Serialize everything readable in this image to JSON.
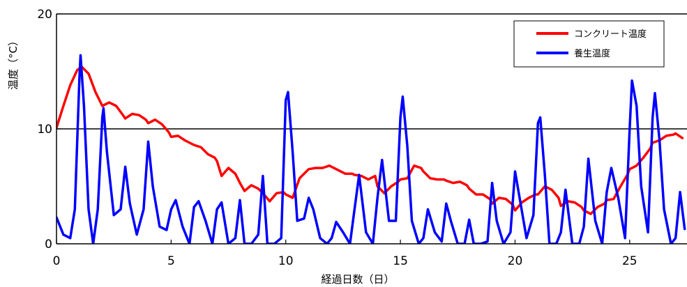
{
  "chart_data": {
    "type": "line",
    "title": "",
    "xlabel": "経過日数（日）",
    "ylabel": "温度（°C）",
    "xlim": [
      0,
      27.5
    ],
    "ylim": [
      0,
      20
    ],
    "xticks": [
      0,
      5,
      10,
      15,
      20,
      25
    ],
    "yticks": [
      0,
      10,
      20
    ],
    "grid": "horizontal line at 10",
    "legend_position": "top-right",
    "series": [
      {
        "name": "コンクリート温度",
        "color": "#ff0000",
        "x": [
          0,
          0.3,
          0.6,
          0.9,
          1.1,
          1.4,
          1.7,
          2.0,
          2.3,
          2.6,
          2.9,
          3.0,
          3.3,
          3.6,
          3.9,
          4.0,
          4.3,
          4.6,
          4.9,
          5.0,
          5.3,
          5.6,
          5.9,
          6.0,
          6.3,
          6.6,
          6.9,
          7.0,
          7.2,
          7.5,
          7.8,
          8.0,
          8.2,
          8.5,
          8.8,
          9.0,
          9.3,
          9.6,
          9.9,
          10.0,
          10.3,
          10.6,
          10.9,
          11.0,
          11.3,
          11.6,
          11.9,
          12.0,
          12.3,
          12.6,
          12.9,
          13.0,
          13.3,
          13.6,
          13.9,
          14.0,
          14.3,
          14.6,
          14.9,
          15.0,
          15.3,
          15.6,
          15.9,
          16.0,
          16.3,
          16.6,
          16.9,
          17.0,
          17.3,
          17.6,
          17.9,
          18.0,
          18.3,
          18.6,
          18.9,
          19.0,
          19.3,
          19.6,
          19.9,
          20.0,
          20.3,
          20.6,
          20.9,
          21.0,
          21.3,
          21.6,
          21.9,
          22.0,
          22.3,
          22.6,
          22.9,
          23.0,
          23.3,
          23.6,
          23.9,
          24.0,
          24.3,
          24.6,
          24.9,
          25.0,
          25.3,
          25.6,
          25.9,
          26.0,
          26.3,
          26.6,
          26.9,
          27.0,
          27.3
        ],
        "y": [
          10.1,
          12.0,
          13.8,
          15.1,
          15.4,
          14.8,
          13.2,
          12.0,
          12.3,
          12.0,
          11.2,
          10.9,
          11.3,
          11.2,
          10.8,
          10.5,
          10.8,
          10.4,
          9.7,
          9.3,
          9.4,
          9.0,
          8.7,
          8.6,
          8.4,
          7.8,
          7.5,
          7.2,
          5.9,
          6.6,
          6.1,
          5.3,
          4.6,
          5.1,
          4.8,
          4.4,
          3.7,
          4.4,
          4.5,
          4.3,
          4.0,
          5.7,
          6.3,
          6.5,
          6.6,
          6.6,
          6.8,
          6.7,
          6.4,
          6.1,
          6.1,
          6.0,
          5.9,
          5.6,
          5.9,
          5.0,
          4.4,
          5.0,
          5.4,
          5.6,
          5.7,
          6.8,
          6.6,
          6.3,
          5.7,
          5.6,
          5.6,
          5.5,
          5.3,
          5.4,
          5.1,
          4.8,
          4.3,
          4.3,
          3.9,
          3.5,
          4.0,
          3.9,
          3.4,
          2.9,
          3.6,
          4.0,
          4.3,
          4.3,
          5.0,
          4.7,
          4.0,
          3.3,
          3.7,
          3.6,
          3.2,
          2.9,
          2.6,
          3.2,
          3.5,
          3.8,
          3.9,
          5.0,
          6.0,
          6.5,
          6.8,
          7.5,
          8.3,
          8.8,
          9.0,
          9.4,
          9.5,
          9.6,
          9.2
        ]
      },
      {
        "name": "養生温度",
        "color": "#0000ff",
        "x": [
          0,
          0.3,
          0.6,
          0.8,
          1.0,
          1.05,
          1.2,
          1.4,
          1.6,
          1.8,
          2.0,
          2.05,
          2.2,
          2.5,
          2.8,
          3.0,
          3.2,
          3.5,
          3.8,
          4.0,
          4.2,
          4.5,
          4.8,
          5.0,
          5.2,
          5.5,
          5.8,
          6.0,
          6.2,
          6.5,
          6.8,
          7.0,
          7.2,
          7.5,
          7.8,
          8.0,
          8.2,
          8.5,
          8.8,
          9.0,
          9.2,
          9.5,
          9.8,
          10.0,
          10.1,
          10.3,
          10.5,
          10.8,
          11.0,
          11.2,
          11.5,
          11.8,
          12.0,
          12.2,
          12.5,
          12.8,
          13.0,
          13.2,
          13.5,
          13.8,
          14.0,
          14.2,
          14.5,
          14.8,
          15.0,
          15.1,
          15.3,
          15.5,
          15.8,
          16.0,
          16.2,
          16.5,
          16.8,
          17.0,
          17.2,
          17.5,
          17.8,
          18.0,
          18.2,
          18.5,
          18.8,
          19.0,
          19.2,
          19.5,
          19.8,
          20.0,
          20.2,
          20.5,
          20.8,
          21.0,
          21.1,
          21.3,
          21.5,
          21.8,
          22.0,
          22.2,
          22.5,
          22.8,
          23.0,
          23.2,
          23.5,
          23.8,
          24.0,
          24.2,
          24.5,
          24.8,
          25.0,
          25.1,
          25.3,
          25.5,
          25.8,
          26.0,
          26.1,
          26.3,
          26.5,
          26.8,
          27.0,
          27.2,
          27.4
        ],
        "y": [
          2.3,
          0.8,
          0.5,
          3.0,
          14.5,
          16.4,
          12.0,
          3.0,
          0.0,
          3.0,
          11.0,
          11.8,
          8.0,
          2.5,
          3.0,
          6.7,
          3.5,
          0.8,
          3.0,
          8.9,
          5.0,
          1.5,
          1.2,
          3.0,
          3.8,
          1.5,
          0.0,
          3.2,
          3.7,
          2.0,
          0.0,
          3.0,
          3.6,
          0.0,
          0.5,
          3.8,
          0.0,
          0.0,
          0.8,
          5.9,
          0.0,
          0.0,
          0.5,
          12.5,
          13.2,
          8.0,
          2.0,
          2.2,
          4.0,
          3.0,
          0.5,
          0.0,
          0.5,
          1.9,
          1.0,
          0.0,
          3.0,
          6.0,
          1.0,
          0.0,
          4.0,
          7.3,
          2.0,
          2.0,
          11.0,
          12.8,
          8.5,
          2.0,
          0.0,
          0.5,
          3.0,
          1.0,
          0.2,
          3.5,
          2.0,
          0.0,
          0.0,
          2.1,
          0.0,
          0.0,
          0.2,
          5.3,
          2.0,
          0.0,
          1.0,
          6.3,
          4.0,
          0.5,
          2.5,
          10.5,
          11.0,
          6.0,
          0.0,
          0.0,
          1.0,
          4.7,
          0.0,
          0.0,
          1.5,
          7.4,
          2.0,
          0.0,
          4.5,
          6.6,
          4.0,
          0.5,
          10.0,
          14.2,
          12.0,
          5.0,
          1.0,
          11.0,
          13.1,
          9.0,
          3.0,
          0.0,
          0.5,
          4.5,
          1.3
        ]
      }
    ]
  }
}
